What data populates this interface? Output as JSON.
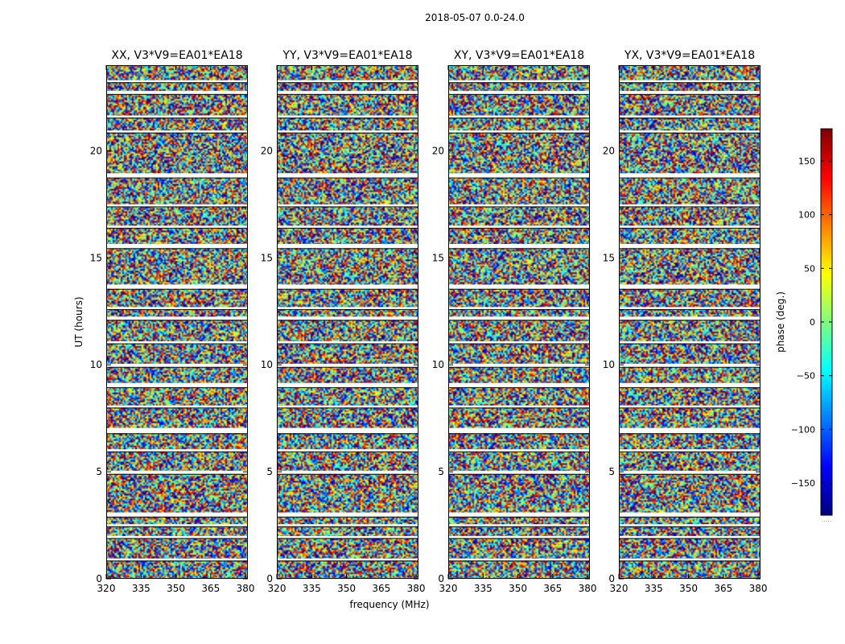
{
  "figure": {
    "suptitle": "2018-05-07 0.0-24.0",
    "xlabel": "frequency (MHz)",
    "ylabel": "UT (hours)"
  },
  "chart_data": {
    "type": "heatmap",
    "title": "2018-05-07 0.0-24.0",
    "xlabel": "frequency (MHz)",
    "ylabel": "UT (hours)",
    "xlim": [
      320,
      381
    ],
    "ylim": [
      0,
      24
    ],
    "x_ticks": [
      320,
      335,
      350,
      365,
      380
    ],
    "x_tick_labels": [
      "320",
      "335",
      "350",
      "365",
      "380"
    ],
    "y_ticks": [
      0,
      5,
      10,
      15,
      20
    ],
    "y_tick_labels": [
      "0",
      "5",
      "10",
      "15",
      "20"
    ],
    "value": "phase",
    "panels": [
      {
        "title": "XX, V3*V9=EA01*EA18",
        "pol": "XX"
      },
      {
        "title": "YY, V3*V9=EA01*EA18",
        "pol": "YY"
      },
      {
        "title": "XY, V3*V9=EA01*EA18",
        "pol": "XY"
      },
      {
        "title": "YX, V3*V9=EA01*EA18",
        "pol": "YX"
      }
    ],
    "flagged_ut_bands": [
      [
        0.85,
        0.95
      ],
      [
        1.9,
        2.0
      ],
      [
        2.45,
        2.55
      ],
      [
        2.9,
        3.1
      ],
      [
        4.9,
        5.05
      ],
      [
        5.95,
        6.05
      ],
      [
        6.8,
        7.05
      ],
      [
        8.0,
        8.1
      ],
      [
        8.95,
        9.15
      ],
      [
        9.9,
        10.05
      ],
      [
        11.0,
        11.1
      ],
      [
        12.1,
        12.25
      ],
      [
        12.6,
        12.7
      ],
      [
        13.55,
        13.75
      ],
      [
        15.45,
        15.65
      ],
      [
        16.4,
        16.5
      ],
      [
        17.4,
        17.5
      ],
      [
        18.75,
        18.95
      ],
      [
        20.85,
        20.95
      ],
      [
        21.55,
        21.65
      ],
      [
        22.65,
        22.8
      ],
      [
        23.2,
        23.3
      ]
    ],
    "colorbar": {
      "label": "phase (deg.)",
      "range": [
        -180,
        180
      ],
      "ticks": [
        150,
        100,
        50,
        0,
        -50,
        -100,
        -150
      ],
      "tick_labels": [
        "150",
        "100",
        "50",
        "0",
        "−50",
        "−100",
        "−150"
      ],
      "colormap": "jet",
      "stops": [
        "#00007f",
        "#0000ff",
        "#007fff",
        "#00ffff",
        "#7fff7f",
        "#ffff00",
        "#ff7f00",
        "#ff0000",
        "#7f0000"
      ],
      "footer": "....."
    }
  }
}
